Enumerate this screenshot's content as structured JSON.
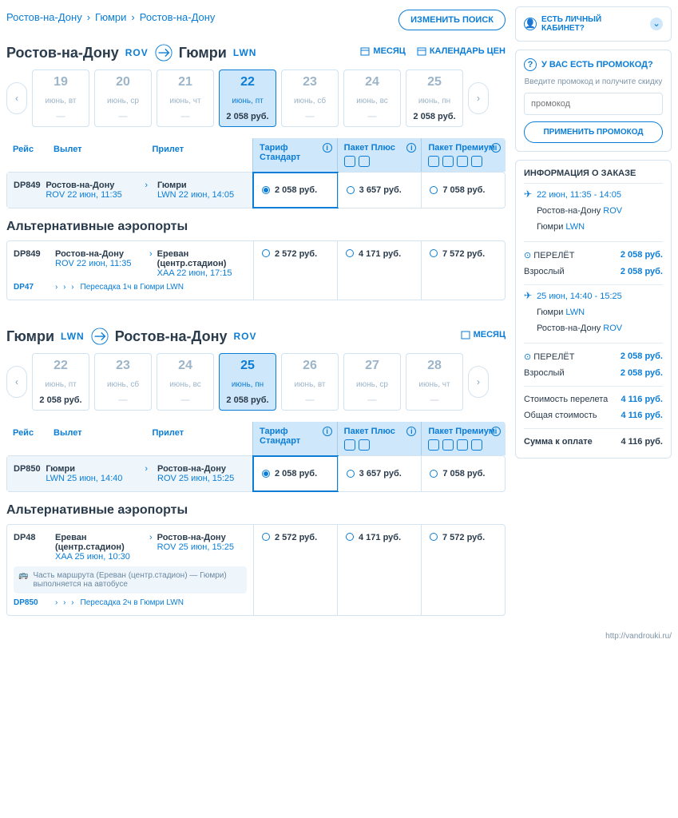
{
  "breadcrumb": [
    "Ростов-на-Дону",
    "Гюмри",
    "Ростов-на-Дону"
  ],
  "change_search": "ИЗМЕНИТЬ ПОИСК",
  "palette": {
    "primary": "#0b7dd6",
    "text": "#2a3b4c",
    "muted": "#9db5c9",
    "border": "#d5e3ef",
    "highlight": "#cfe7fa"
  },
  "links": {
    "month": "МЕСЯЦ",
    "price_cal": "КАЛЕНДАРЬ ЦЕН"
  },
  "outbound": {
    "from": "Ростов-на-Дону",
    "from_code": "ROV",
    "to": "Гюмри",
    "to_code": "LWN",
    "dates": [
      {
        "d": "19",
        "m": "июнь, вт",
        "p": "—"
      },
      {
        "d": "20",
        "m": "июнь, ср",
        "p": "—"
      },
      {
        "d": "21",
        "m": "июнь, чт",
        "p": "—"
      },
      {
        "d": "22",
        "m": "июнь, пт",
        "p": "2 058 руб.",
        "active": true
      },
      {
        "d": "23",
        "m": "июнь, сб",
        "p": "—"
      },
      {
        "d": "24",
        "m": "июнь, вс",
        "p": "—"
      },
      {
        "d": "25",
        "m": "июнь, пн",
        "p": "2 058 руб."
      }
    ],
    "fare_cols": [
      "Тариф Стандарт",
      "Пакет Плюс",
      "Пакет Премиум"
    ],
    "head": [
      "Рейс",
      "Вылет",
      "Прилет"
    ],
    "flight": {
      "num": "DP849",
      "dep_city": "Ростов-на-Дону",
      "dep_sub": "ROV 22 июн, 11:35",
      "arr_city": "Гюмри",
      "arr_sub": "LWN 22 июн, 14:05",
      "prices": [
        "2 058 руб.",
        "3 657 руб.",
        "7 058 руб."
      ]
    },
    "alt_title": "Альтернативные аэропорты",
    "alt": {
      "num": "DP849",
      "dep_city": "Ростов-на-Дону",
      "dep_sub": "ROV 22 июн, 11:35",
      "arr_city": "Ереван (центр.стадион)",
      "arr_sub": "XAA 22 июн, 17:15",
      "transfer_num": "DP47",
      "transfer": "Пересадка 1ч в Гюмри LWN",
      "prices": [
        "2 572 руб.",
        "4 171 руб.",
        "7 572 руб."
      ]
    }
  },
  "return": {
    "from": "Гюмри",
    "from_code": "LWN",
    "to": "Ростов-на-Дону",
    "to_code": "ROV",
    "dates": [
      {
        "d": "22",
        "m": "июнь, пт",
        "p": "2 058 руб."
      },
      {
        "d": "23",
        "m": "июнь, сб",
        "p": "—"
      },
      {
        "d": "24",
        "m": "июнь, вс",
        "p": "—"
      },
      {
        "d": "25",
        "m": "июнь, пн",
        "p": "2 058 руб.",
        "active": true
      },
      {
        "d": "26",
        "m": "июнь, вт",
        "p": "—"
      },
      {
        "d": "27",
        "m": "июнь, ср",
        "p": "—"
      },
      {
        "d": "28",
        "m": "июнь, чт",
        "p": "—"
      }
    ],
    "flight": {
      "num": "DP850",
      "dep_city": "Гюмри",
      "dep_sub": "LWN 25 июн, 14:40",
      "arr_city": "Ростов-на-Дону",
      "arr_sub": "ROV 25 июн, 15:25",
      "prices": [
        "2 058 руб.",
        "3 657 руб.",
        "7 058 руб."
      ]
    },
    "alt": {
      "num": "DP48",
      "dep_city": "Ереван (центр.стадион)",
      "dep_sub": "XAA 25 июн, 10:30",
      "arr_city": "Ростов-на-Дону",
      "arr_sub": "ROV 25 июн, 15:25",
      "busnote": "Часть маршрута (Ереван (центр.стадион) — Гюмри) выполняется на автобусе",
      "transfer_num": "DP850",
      "transfer": "Пересадка 2ч в Гюмри LWN",
      "prices": [
        "2 572 руб.",
        "4 171 руб.",
        "7 572 руб."
      ]
    }
  },
  "sidebar": {
    "account": "ЕСТЬ ЛИЧНЫЙ КАБИНЕТ?",
    "promo": {
      "title": "У ВАС ЕСТЬ ПРОМОКОД?",
      "sub": "Введите промокод и получите скидку",
      "placeholder": "промокод",
      "btn": "ПРИМЕНИТЬ ПРОМОКОД"
    },
    "order": {
      "title": "ИНФОРМАЦИЯ О ЗАКАЗЕ",
      "seg1": {
        "time": "22 июн, 11:35 - 14:05",
        "l1": "Ростов-на-Дону",
        "c1": "ROV",
        "l2": "Гюмри",
        "c2": "LWN"
      },
      "line_flight": "ПЕРЕЛЁТ",
      "flight_price": "2 058 руб.",
      "adult": "Взрослый",
      "adult_price": "2 058 руб.",
      "seg2": {
        "time": "25 июн, 14:40 - 15:25",
        "l1": "Гюмри",
        "c1": "LWN",
        "l2": "Ростов-на-Дону",
        "c2": "ROV"
      },
      "cost_label": "Стоимость перелета",
      "cost": "4 116 руб.",
      "total_label": "Общая стоимость",
      "total": "4 116 руб.",
      "sum_label": "Сумма к оплате",
      "sum": "4 116 руб."
    }
  },
  "footer": "http://vandrouki.ru/"
}
